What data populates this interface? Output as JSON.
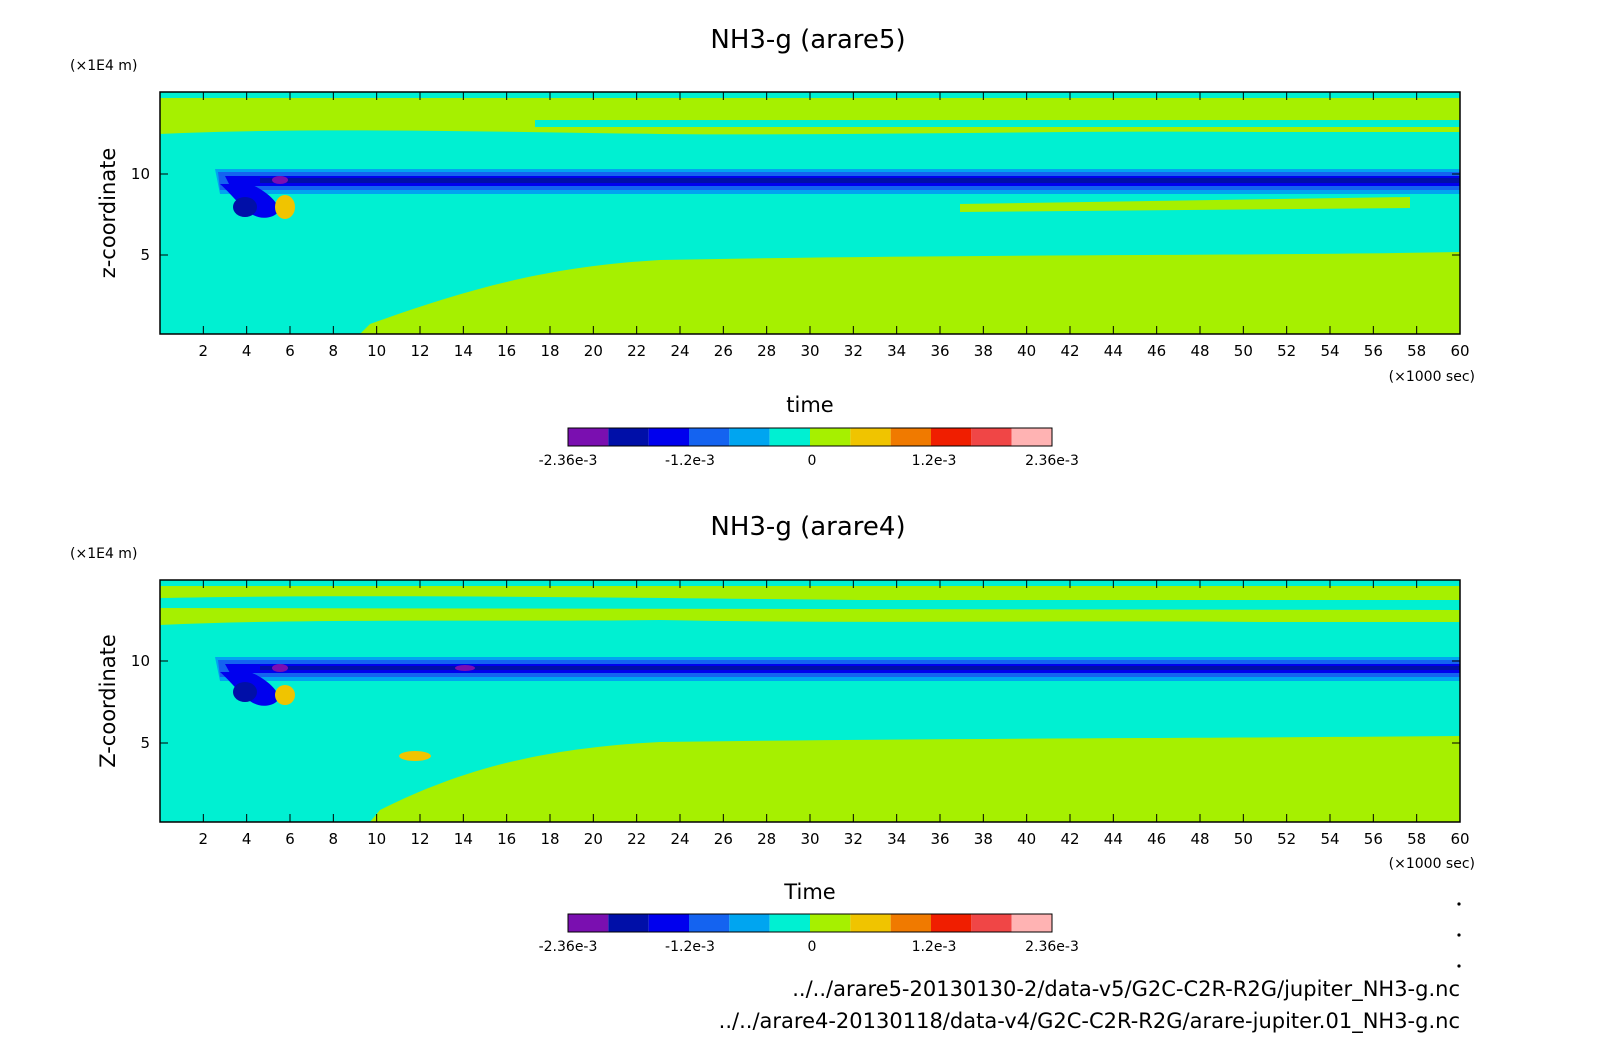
{
  "chart_data": [
    {
      "type": "heatmap",
      "title": "NH3-g (arare5)",
      "xlabel": "time",
      "ylabel": "z-coordinate",
      "x_unit": "(×1000 sec)",
      "y_unit": "(×1E4 m)",
      "xlim": [
        0,
        60
      ],
      "ylim": [
        0,
        14.7
      ],
      "x_ticks": [
        "2",
        "4",
        "6",
        "8",
        "10",
        "12",
        "14",
        "16",
        "18",
        "20",
        "22",
        "24",
        "26",
        "28",
        "30",
        "32",
        "34",
        "36",
        "38",
        "40",
        "42",
        "44",
        "46",
        "48",
        "50",
        "52",
        "54",
        "56",
        "58",
        "60"
      ],
      "y_ticks": [
        "5",
        "10"
      ],
      "colorbar": {
        "labels": [
          "-2.36e-3",
          "-1.2e-3",
          "0",
          "1.2e-3",
          "2.36e-3"
        ],
        "colors": [
          "#7a0fb0",
          "#000fa8",
          "#0000ee",
          "#1463f0",
          "#00a5f0",
          "#00f0d2",
          "#a6f000",
          "#f0c400",
          "#f07a00",
          "#f01e00",
          "#f04646",
          "#ffb3b3"
        ]
      },
      "regions": [
        {
          "name": "upper-cyan-band",
          "value": "~ -2e-4",
          "x": [
            0,
            60
          ],
          "y": [
            10.3,
            12.0
          ]
        },
        {
          "name": "min-core",
          "value": "-1e-3 to -2.36e-3",
          "x": [
            2.5,
            60
          ],
          "y": [
            9.2,
            9.9
          ]
        },
        {
          "name": "lower-cyan-layer",
          "value": "~ -2e-4",
          "x": [
            0,
            60
          ],
          "y": [
            4.5,
            9.2
          ]
        },
        {
          "name": "bottom-green",
          "value": "~ 0",
          "x": [
            10,
            60
          ],
          "y": [
            0,
            4.5
          ]
        }
      ]
    },
    {
      "type": "heatmap",
      "title": "NH3-g (arare4)",
      "xlabel": "Time",
      "ylabel": "Z-coordinate",
      "x_unit": "(×1000 sec)",
      "y_unit": "(×1E4 m)",
      "xlim": [
        0,
        60
      ],
      "ylim": [
        0,
        14.7
      ],
      "x_ticks": [
        "2",
        "4",
        "6",
        "8",
        "10",
        "12",
        "14",
        "16",
        "18",
        "20",
        "22",
        "24",
        "26",
        "28",
        "30",
        "32",
        "34",
        "36",
        "38",
        "40",
        "42",
        "44",
        "46",
        "48",
        "50",
        "52",
        "54",
        "56",
        "58",
        "60"
      ],
      "y_ticks": [
        "5",
        "10"
      ],
      "colorbar": {
        "labels": [
          "-2.36e-3",
          "-1.2e-3",
          "0",
          "1.2e-3",
          "2.36e-3"
        ],
        "colors": [
          "#7a0fb0",
          "#000fa8",
          "#0000ee",
          "#1463f0",
          "#00a5f0",
          "#00f0d2",
          "#a6f000",
          "#f0c400",
          "#f07a00",
          "#f01e00",
          "#f04646",
          "#ffb3b3"
        ]
      },
      "regions": [
        {
          "name": "upper-cyan-band",
          "value": "~ -2e-4",
          "x": [
            0,
            60
          ],
          "y": [
            10.3,
            12.0
          ]
        },
        {
          "name": "min-core",
          "value": "-1e-3 to -2.36e-3",
          "x": [
            2.5,
            60
          ],
          "y": [
            9.2,
            9.9
          ]
        },
        {
          "name": "lower-cyan-layer",
          "value": "~ -2e-4",
          "x": [
            0,
            60
          ],
          "y": [
            4.8,
            9.2
          ]
        },
        {
          "name": "bottom-green",
          "value": "~ 0",
          "x": [
            10,
            60
          ],
          "y": [
            0,
            4.8
          ]
        }
      ]
    }
  ],
  "colors": {
    "green": "#a6f000",
    "cyan": "#00f0d2",
    "lightblue": "#00a5f0",
    "blue": "#1463f0",
    "navy": "#0000ee",
    "darknavy": "#000fa8",
    "purple": "#7a0fb0",
    "orange": "#f0c400"
  },
  "footer": {
    "path1": "../../arare5-20130130-2/data-v5/G2C-C2R-R2G/jupiter_NH3-g.nc",
    "path2": "../../arare4-20130118/data-v4/G2C-C2R-R2G/arare-jupiter.01_NH3-g.nc"
  }
}
